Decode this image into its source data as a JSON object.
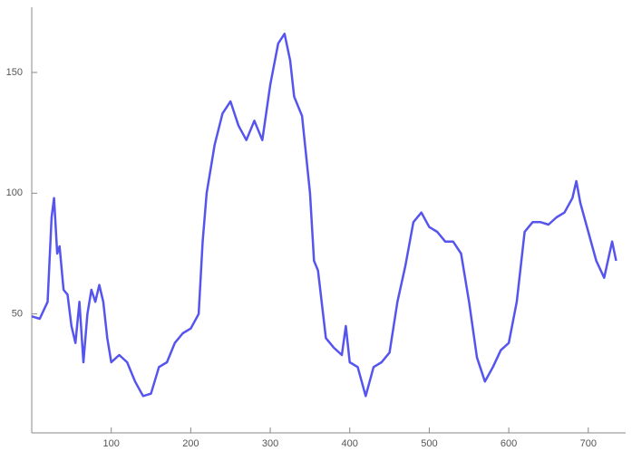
{
  "chart_data": {
    "type": "line",
    "x": [
      0,
      10,
      20,
      25,
      28,
      32,
      35,
      40,
      45,
      50,
      55,
      60,
      65,
      70,
      75,
      80,
      85,
      90,
      95,
      100,
      110,
      120,
      130,
      140,
      150,
      160,
      170,
      180,
      190,
      200,
      210,
      215,
      220,
      230,
      240,
      250,
      260,
      270,
      280,
      290,
      300,
      310,
      318,
      325,
      330,
      340,
      350,
      355,
      360,
      370,
      380,
      390,
      395,
      400,
      410,
      420,
      430,
      440,
      450,
      460,
      470,
      480,
      490,
      500,
      510,
      520,
      530,
      540,
      550,
      560,
      570,
      580,
      590,
      600,
      610,
      620,
      630,
      640,
      650,
      660,
      670,
      680,
      685,
      690,
      700,
      710,
      720,
      730,
      735
    ],
    "series": [
      {
        "color": "#5555ee",
        "values": [
          49,
          48,
          55,
          90,
          98,
          75,
          78,
          60,
          58,
          45,
          38,
          55,
          30,
          50,
          60,
          55,
          62,
          55,
          40,
          30,
          33,
          30,
          22,
          16,
          17,
          28,
          30,
          38,
          42,
          44,
          50,
          80,
          100,
          120,
          133,
          138,
          128,
          122,
          130,
          122,
          145,
          162,
          166,
          155,
          140,
          132,
          100,
          72,
          68,
          40,
          36,
          33,
          45,
          30,
          28,
          16,
          28,
          30,
          34,
          55,
          70,
          88,
          92,
          86,
          84,
          80,
          80,
          75,
          55,
          32,
          22,
          28,
          35,
          38,
          55,
          84,
          88,
          88,
          87,
          90,
          92,
          98,
          105,
          96,
          84,
          72,
          65,
          80,
          72
        ]
      }
    ],
    "xlim": [
      0,
      747
    ],
    "ylim": [
      0,
      177
    ],
    "xticks": [
      100,
      200,
      300,
      400,
      500,
      600,
      700
    ],
    "yticks": [
      50,
      100,
      150
    ]
  }
}
